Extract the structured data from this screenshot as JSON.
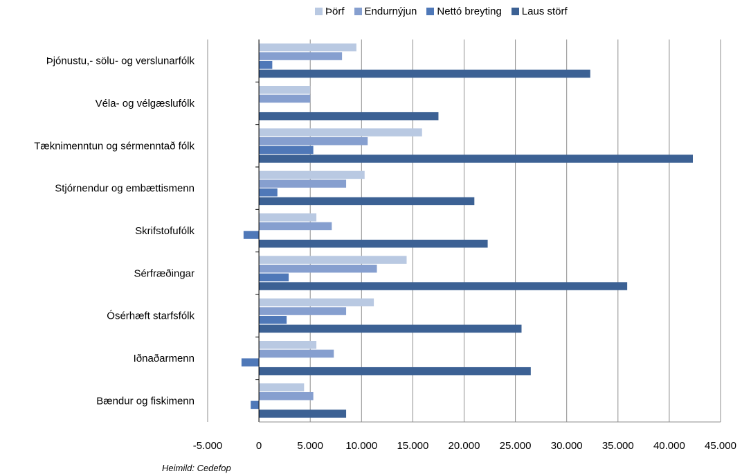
{
  "source": "Heimild: Cedefop",
  "colors": [
    "#b9c9e2",
    "#869fcf",
    "#4f78b8",
    "#3c6194"
  ],
  "chart_data": {
    "type": "bar",
    "orientation": "horizontal",
    "categories": [
      "Þjónustu,- sölu- og verslunarfólk",
      "Véla- og vélgæslufólk",
      "Tæknimenntun og sérmenntað fólk",
      "Stjórnendur og embættismenn",
      "Skrifstofufólk",
      "Sérfræðingar",
      "Ósérhæft starfsfólk",
      "Iðnaðarmenn",
      "Bændur og fiskimenn"
    ],
    "series": [
      {
        "name": "Þörf",
        "values": [
          9500,
          5000,
          15900,
          10300,
          5600,
          14400,
          11200,
          5600,
          4400
        ]
      },
      {
        "name": "Endurnýjun",
        "values": [
          8100,
          5000,
          10600,
          8500,
          7100,
          11500,
          8500,
          7300,
          5300
        ]
      },
      {
        "name": "Nettó breyting",
        "values": [
          1300,
          0,
          5300,
          1800,
          -1500,
          2900,
          2700,
          -1700,
          -800
        ]
      },
      {
        "name": "Laus störf",
        "values": [
          32300,
          17500,
          42300,
          21000,
          22300,
          35900,
          25600,
          26500,
          8500
        ]
      }
    ],
    "xlim": [
      -5000,
      45000
    ],
    "xticks": [
      "-5.000",
      "0",
      "5.000",
      "10.000",
      "15.000",
      "20.000",
      "25.000",
      "30.000",
      "35.000",
      "40.000",
      "45.000"
    ],
    "grid": true,
    "legend": "top"
  }
}
